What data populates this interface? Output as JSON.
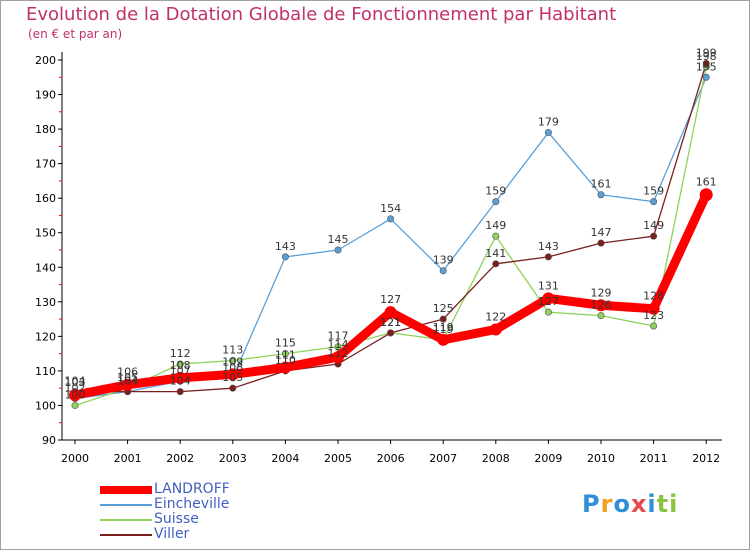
{
  "title": "Evolution de la Dotation Globale de Fonctionnement par Habitant",
  "subtitle": "(en € et par an)",
  "logo": {
    "text": "Proxiti",
    "colors": [
      "#2f8fd8",
      "#f0a020",
      "#2f8fd8",
      "#e54b4b",
      "#2f8fd8",
      "#8ac43f",
      "#8ac43f"
    ]
  },
  "chart_data": {
    "type": "line",
    "title": "Evolution de la Dotation Globale de Fonctionnement par Habitant",
    "subtitle": "(en € et par an)",
    "x": [
      "2000",
      "2001",
      "2002",
      "2003",
      "2004",
      "2005",
      "2006",
      "2007",
      "2008",
      "2009",
      "2010",
      "2011",
      "2012"
    ],
    "ylim": [
      90,
      200
    ],
    "yticks": [
      "90",
      "100",
      "110",
      "120",
      "130",
      "140",
      "150",
      "160",
      "170",
      "180",
      "190",
      "200"
    ],
    "grid": false,
    "legend": "bottom-left",
    "series": [
      {
        "name": "LANDROFF",
        "color": "#ff0000",
        "thick": true,
        "values": [
          103,
          106,
          108,
          109,
          111,
          114,
          127,
          119,
          122,
          131,
          129,
          128,
          161
        ],
        "labels": [
          "103",
          "106",
          "108",
          "109",
          "111",
          "114",
          "127",
          "119",
          "122",
          "131",
          "129",
          "128",
          "161"
        ]
      },
      {
        "name": "Eincheville",
        "color": "#5aa0d8",
        "thick": false,
        "values": [
          102,
          104,
          107,
          108,
          143,
          145,
          154,
          139,
          159,
          179,
          161,
          159,
          195
        ],
        "labels": [
          "102",
          "104",
          "107",
          "108",
          "143",
          "145",
          "154",
          "139",
          "159",
          "179",
          "161",
          "159",
          "195"
        ]
      },
      {
        "name": "Suisse",
        "color": "#8fd25a",
        "thick": false,
        "values": [
          100,
          105,
          112,
          113,
          115,
          117,
          121,
          119,
          149,
          127,
          126,
          123,
          198
        ],
        "labels": [
          "100",
          "105",
          "112",
          "113",
          "115",
          "117",
          "121",
          "119",
          "149",
          "127",
          "126",
          "123",
          "198"
        ]
      },
      {
        "name": "Viller",
        "color": "#7a1e1e",
        "thick": false,
        "values": [
          104,
          104,
          104,
          105,
          110,
          112,
          121,
          125,
          141,
          143,
          147,
          149,
          199
        ],
        "labels": [
          "104",
          "104",
          "104",
          "105",
          "110",
          "112",
          "121",
          "125",
          "141",
          "143",
          "147",
          "149",
          "199"
        ]
      }
    ]
  }
}
